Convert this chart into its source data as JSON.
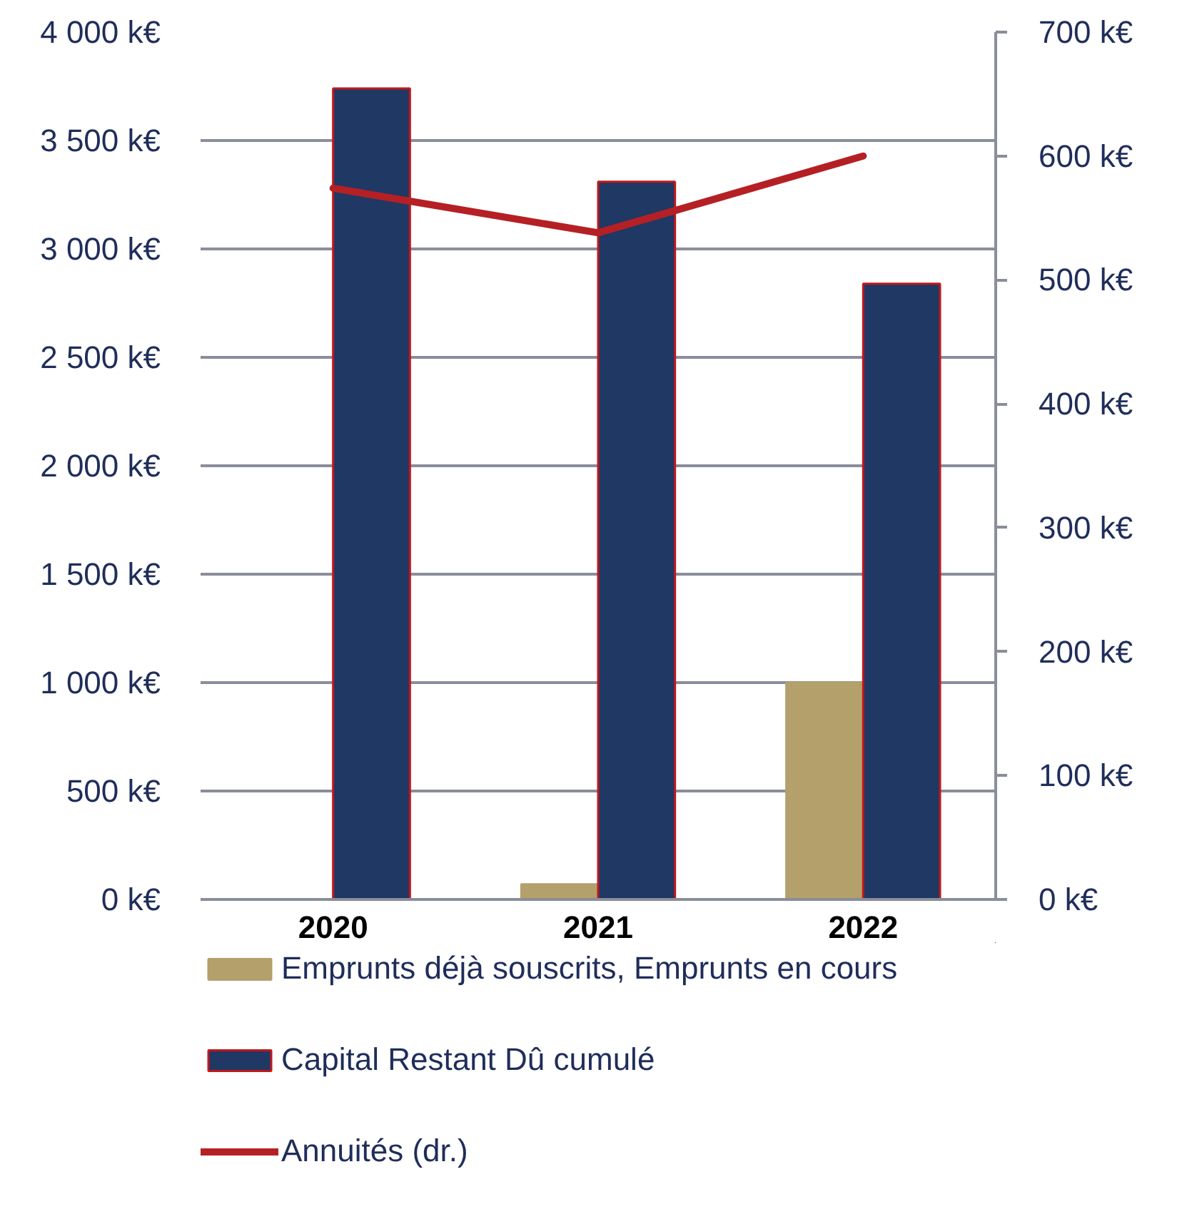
{
  "chart_data": {
    "type": "bar",
    "categories": [
      "2020",
      "2021",
      "2022"
    ],
    "series": [
      {
        "name": "Emprunts déjà souscrits, Emprunts en cours",
        "type": "bar",
        "color": "#b3a06b",
        "values": [
          0,
          70,
          1000
        ]
      },
      {
        "name": "Capital Restant Dû cumulé",
        "type": "bar",
        "color": "#1f3864",
        "values": [
          3740,
          3310,
          2840
        ]
      },
      {
        "name": "Annuités (dr.)",
        "type": "line",
        "axis": "y2",
        "color": "#b52025",
        "values": [
          574,
          538,
          600
        ]
      }
    ],
    "ylim": [
      0,
      4000
    ],
    "yticks": [
      {
        "value": 0,
        "label": "0 k€"
      },
      {
        "value": 500,
        "label": "500 k€"
      },
      {
        "value": 1000,
        "label": "1 000 k€"
      },
      {
        "value": 1500,
        "label": "1 500 k€"
      },
      {
        "value": 2000,
        "label": "2 000 k€"
      },
      {
        "value": 2500,
        "label": "2 500 k€"
      },
      {
        "value": 3000,
        "label": "3 000 k€"
      },
      {
        "value": 3500,
        "label": "3 500 k€"
      },
      {
        "value": 4000,
        "label": "4 000 k€"
      }
    ],
    "y2lim": [
      0,
      700
    ],
    "y2ticks": [
      {
        "value": 0,
        "label": "0 k€"
      },
      {
        "value": 100,
        "label": "100 k€"
      },
      {
        "value": 200,
        "label": "200 k€"
      },
      {
        "value": 300,
        "label": "300 k€"
      },
      {
        "value": 400,
        "label": "400 k€"
      },
      {
        "value": 500,
        "label": "500 k€"
      },
      {
        "value": 600,
        "label": "600 k€"
      },
      {
        "value": 700,
        "label": "700 k€"
      }
    ],
    "grid": "y",
    "legend": "bottom"
  }
}
